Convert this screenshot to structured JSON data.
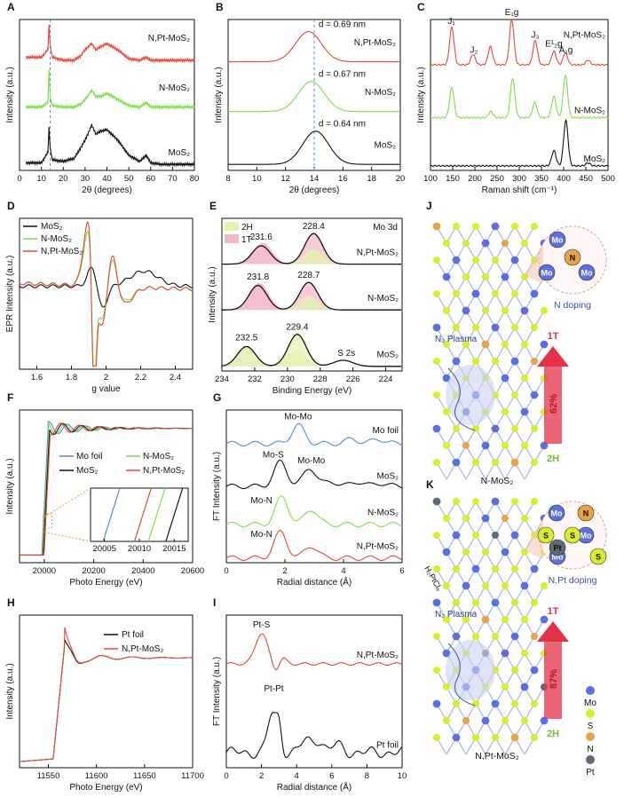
{
  "colors": {
    "red": "#e8473a",
    "green": "#7be04a",
    "black": "#111111",
    "blue": "#4a8fd6",
    "dashed": "#4a90d9",
    "mo": "#5b6fe0",
    "s": "#d7ef2a",
    "n": "#e9a347",
    "pt": "#5f6b73",
    "pink": "#f3b9c6",
    "lightgreen": "#e2f2b3",
    "arrowRed": "#e4324a"
  },
  "panels": {
    "A": "A",
    "B": "B",
    "C": "C",
    "D": "D",
    "E": "E",
    "F": "F",
    "G": "G",
    "H": "H",
    "I": "I",
    "J": "J",
    "K": "K"
  },
  "chart_data": [
    {
      "id": "A",
      "type": "line",
      "xlabel": "2θ (degrees)",
      "ylabel": "Intensity (a.u.)",
      "xlim": [
        0,
        80
      ],
      "xticks": [
        0,
        10,
        20,
        30,
        40,
        50,
        60,
        70,
        80
      ],
      "vline": 14,
      "series": [
        {
          "name": "N,Pt-MoS2",
          "color": "red",
          "x": [
            10,
            13,
            13.5,
            14,
            15,
            20,
            25,
            28,
            30,
            33,
            35,
            37,
            40,
            45,
            50,
            55,
            58,
            60,
            65,
            70,
            80
          ],
          "y": [
            0.75,
            0.8,
            0.96,
            0.83,
            0.75,
            0.73,
            0.73,
            0.76,
            0.8,
            0.84,
            0.8,
            0.82,
            0.84,
            0.8,
            0.74,
            0.73,
            0.75,
            0.73,
            0.73,
            0.73,
            0.73
          ],
          "label": "N,Pt-MoS₂"
        },
        {
          "name": "N-MoS2",
          "color": "green",
          "x": [
            10,
            13,
            13.5,
            14,
            15,
            20,
            25,
            28,
            30,
            33,
            35,
            37,
            40,
            45,
            50,
            55,
            58,
            60,
            65,
            70,
            80
          ],
          "y": [
            0.42,
            0.45,
            0.66,
            0.48,
            0.43,
            0.42,
            0.42,
            0.44,
            0.47,
            0.53,
            0.49,
            0.49,
            0.51,
            0.47,
            0.43,
            0.42,
            0.45,
            0.42,
            0.42,
            0.42,
            0.42
          ],
          "label": "N-MoS₂"
        },
        {
          "name": "MoS2",
          "color": "black",
          "x": [
            10,
            13,
            13.5,
            14,
            15,
            20,
            25,
            28,
            30,
            33,
            35,
            37,
            40,
            45,
            50,
            55,
            58,
            60,
            65,
            70,
            80
          ],
          "y": [
            0.05,
            0.12,
            0.28,
            0.15,
            0.07,
            0.06,
            0.08,
            0.15,
            0.2,
            0.3,
            0.24,
            0.26,
            0.27,
            0.2,
            0.1,
            0.06,
            0.1,
            0.05,
            0.04,
            0.04,
            0.04
          ],
          "label": "MoS₂"
        }
      ]
    },
    {
      "id": "B",
      "type": "line",
      "xlabel": "2θ (degrees)",
      "ylabel": "Intensity (a.u.)",
      "xlim": [
        8,
        20
      ],
      "xticks": [
        8,
        10,
        12,
        14,
        16,
        18,
        20
      ],
      "vline": 14,
      "series": [
        {
          "name": "N,Pt-MoS2",
          "color": "red",
          "center": 13.6,
          "base": 0.72,
          "amp": 0.2,
          "label": "N,Pt-MoS₂",
          "d": "d = 0.69 nm"
        },
        {
          "name": "N-MoS2",
          "color": "green",
          "center": 13.8,
          "base": 0.39,
          "amp": 0.2,
          "label": "N-MoS₂",
          "d": "d = 0.67 nm"
        },
        {
          "name": "MoS2",
          "color": "black",
          "center": 14.1,
          "base": 0.04,
          "amp": 0.22,
          "label": "MoS₂",
          "d": "d = 0.64 nm"
        }
      ]
    },
    {
      "id": "C",
      "type": "line",
      "xlabel": "Raman shift (cm⁻¹)",
      "ylabel": "Intensity (a.u.)",
      "xlim": [
        100,
        500
      ],
      "xticks": [
        100,
        150,
        200,
        250,
        300,
        350,
        400,
        450,
        500
      ],
      "series": [
        {
          "name": "N,Pt-MoS2",
          "color": "red",
          "label": "N,Pt-MoS₂",
          "base": 0.7,
          "peaks": [
            [
              148,
              0.25
            ],
            [
              196,
              0.07
            ],
            [
              235,
              0.12
            ],
            [
              283,
              0.3
            ],
            [
              336,
              0.16
            ],
            [
              378,
              0.09
            ],
            [
              404,
              0.08
            ],
            [
              455,
              0.03
            ]
          ]
        },
        {
          "name": "N-MoS2",
          "color": "green",
          "label": "N-MoS₂",
          "base": 0.35,
          "peaks": [
            [
              148,
              0.2
            ],
            [
              236,
              0.04
            ],
            [
              285,
              0.26
            ],
            [
              335,
              0.1
            ],
            [
              378,
              0.14
            ],
            [
              404,
              0.28
            ]
          ]
        },
        {
          "name": "MoS2",
          "color": "black",
          "label": "MoS₂",
          "base": 0.03,
          "peaks": [
            [
              378,
              0.1
            ],
            [
              405,
              0.3
            ],
            [
              455,
              0.02
            ]
          ]
        }
      ],
      "annotations": [
        {
          "text": "J₁",
          "x": 147
        },
        {
          "text": "J₂",
          "x": 198
        },
        {
          "text": "E₁g",
          "x": 283
        },
        {
          "text": "J₃",
          "x": 336
        },
        {
          "text": "E¹₂g",
          "x": 378
        },
        {
          "text": "A₁g",
          "x": 405
        }
      ]
    },
    {
      "id": "D",
      "type": "line",
      "xlabel": "g value",
      "ylabel": "EPR Intensity (a.u.)",
      "xlim": [
        1.5,
        2.5
      ],
      "xticks": [
        1.6,
        1.8,
        2.0,
        2.2,
        2.4
      ],
      "legend": [
        "MoS₂",
        "N-MoS₂",
        "N,Pt-MoS₂"
      ]
    },
    {
      "id": "E",
      "type": "line",
      "xlabel": "Binding Energy (eV)",
      "ylabel": "Intensity (a.u.)",
      "xlim": [
        234,
        223
      ],
      "xticks": [
        234,
        232,
        230,
        228,
        226,
        224
      ],
      "title": "Mo 3d",
      "legend": [
        "2H",
        "1T"
      ],
      "samples": [
        {
          "label": "N,Pt-MoS₂",
          "peaks": [
            "231.6",
            "228.4"
          ]
        },
        {
          "label": "N-MoS₂",
          "peaks": [
            "231.8",
            "228.7"
          ]
        },
        {
          "label": "MoS₂",
          "peaks": [
            "232.5",
            "229.4"
          ],
          "extra": "S 2s"
        }
      ]
    },
    {
      "id": "F",
      "type": "line",
      "xlabel": "Photo Energy (eV)",
      "ylabel": "Intensity (a.u.)",
      "xlim": [
        19900,
        20600
      ],
      "xticks": [
        20000,
        20200,
        20400,
        20600
      ],
      "inset_ticks": [
        20005,
        20010,
        20015
      ],
      "legend": [
        "Mo foil",
        "N-MoS₂",
        "MoS₂",
        "N,Pt-MoS₂"
      ]
    },
    {
      "id": "G",
      "type": "line",
      "xlabel": "Radial distance (Å)",
      "ylabel": "FT Intensity (a.u.)",
      "xlim": [
        0,
        6
      ],
      "xticks": [
        0,
        2,
        4,
        6
      ],
      "samples": [
        {
          "label": "Mo foil",
          "peak": "Mo-Mo"
        },
        {
          "label": "MoS₂",
          "peak": "Mo-S",
          "peak2": "Mo-Mo"
        },
        {
          "label": "N-MoS₂",
          "peak": "Mo-N"
        },
        {
          "label": "N,Pt-MoS₂",
          "peak": "Mo-N"
        }
      ]
    },
    {
      "id": "H",
      "type": "line",
      "xlabel": "Photo Energy (eV)",
      "ylabel": "Intensity (a.u.)",
      "xlim": [
        11520,
        11700
      ],
      "xticks": [
        11550,
        11600,
        11650,
        11700
      ],
      "legend": [
        "Pt foil",
        "N,Pt-MoS₂"
      ]
    },
    {
      "id": "I",
      "type": "line",
      "xlabel": "Radial distance (Å)",
      "ylabel": "FT Intensity (a.u.)",
      "xlim": [
        0,
        10
      ],
      "xticks": [
        0,
        2,
        4,
        6,
        8,
        10
      ],
      "samples": [
        {
          "label": "N,Pt-MoS₂",
          "peak": "Pt-S"
        },
        {
          "label": "Pt foil",
          "peak": "Pt-Pt"
        }
      ]
    }
  ],
  "schematics": {
    "J": {
      "caption": "N-MoS₂",
      "plasma": "N₂ Plasma",
      "top": "1T",
      "bottom": "2H",
      "percent": "62%",
      "doping": "N doping",
      "atoms": [
        "Mo",
        "Mo",
        "Mo",
        "N"
      ]
    },
    "K": {
      "caption": "N,Pt-MoS₂",
      "plasma": "N₂ Plasma",
      "precursor": "H₂PtCl₆",
      "top": "1T",
      "bottom": "2H",
      "percent": "87%",
      "doping": "N,Pt doping",
      "atoms": [
        "Mo",
        "Mo",
        "Mo",
        "N",
        "S",
        "S",
        "S",
        "Pt"
      ]
    },
    "legend": [
      {
        "label": "Mo",
        "color": "mo"
      },
      {
        "label": "S",
        "color": "s"
      },
      {
        "label": "N",
        "color": "n"
      },
      {
        "label": "Pt",
        "color": "pt"
      }
    ]
  }
}
